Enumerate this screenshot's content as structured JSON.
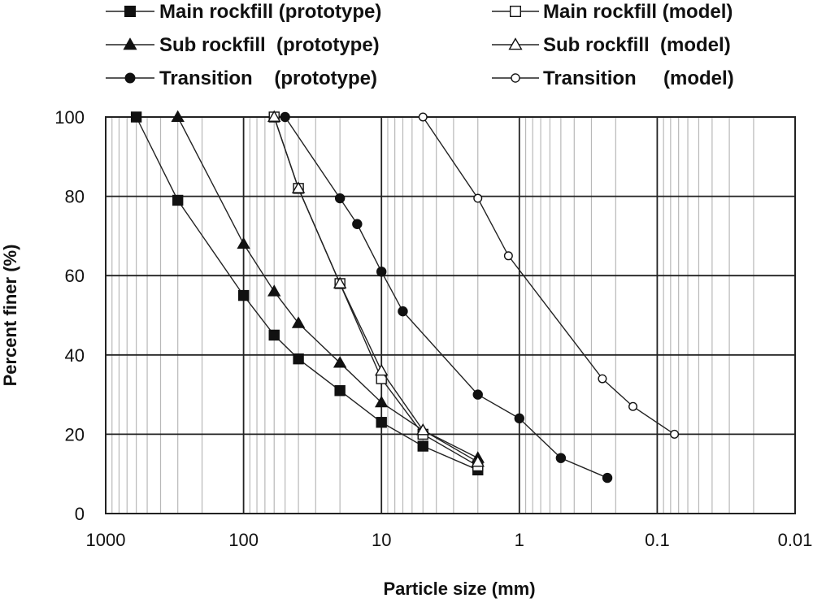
{
  "chart_data": {
    "type": "line",
    "x_scale": "log",
    "x_reversed": true,
    "xlabel": "Particle size (mm)",
    "ylabel": "Percent finer (%)",
    "xlim": [
      1000,
      0.01
    ],
    "ylim": [
      0,
      100
    ],
    "x_ticks": [
      1000,
      100,
      10,
      1,
      0.1,
      0.01
    ],
    "x_tick_labels": [
      "1000",
      "100",
      "10",
      "1",
      "0.1",
      "0.01"
    ],
    "y_ticks": [
      0,
      20,
      40,
      60,
      80,
      100
    ],
    "y_tick_labels": [
      "0",
      "20",
      "40",
      "60",
      "80",
      "100"
    ],
    "grid": true,
    "legend_position": "top",
    "series": [
      {
        "name": "Main rockfill (prototype)",
        "marker": "square-filled",
        "x": [
          600,
          300,
          100,
          60,
          40,
          20,
          10,
          5,
          2
        ],
        "y": [
          100,
          79,
          55,
          45,
          39,
          31,
          23,
          17,
          11
        ]
      },
      {
        "name": "Main rockfill (model)",
        "marker": "square-open",
        "x": [
          60,
          40,
          20,
          10,
          5,
          2
        ],
        "y": [
          100,
          82,
          58,
          34,
          20,
          12
        ]
      },
      {
        "name": "Sub rockfill  (prototype)",
        "marker": "triangle-filled",
        "x": [
          300,
          100,
          60,
          40,
          20,
          10,
          5,
          2
        ],
        "y": [
          100,
          68,
          56,
          48,
          38,
          28,
          21,
          14
        ]
      },
      {
        "name": "Sub rockfill  (model)",
        "marker": "triangle-open",
        "x": [
          60,
          40,
          20,
          10,
          5,
          2
        ],
        "y": [
          100,
          82,
          58,
          36,
          21,
          13
        ]
      },
      {
        "name": "Transition    (prototype)",
        "marker": "circle-filled",
        "x": [
          50,
          20,
          15,
          10,
          7,
          2,
          1,
          0.5,
          0.23
        ],
        "y": [
          100,
          79.5,
          73,
          61,
          51,
          30,
          24,
          14,
          9
        ]
      },
      {
        "name": "Transition     (model)",
        "marker": "circle-open",
        "x": [
          5,
          2,
          1.2,
          0.25,
          0.15,
          0.075
        ],
        "y": [
          100,
          79.5,
          65,
          34,
          27,
          20
        ]
      }
    ]
  }
}
